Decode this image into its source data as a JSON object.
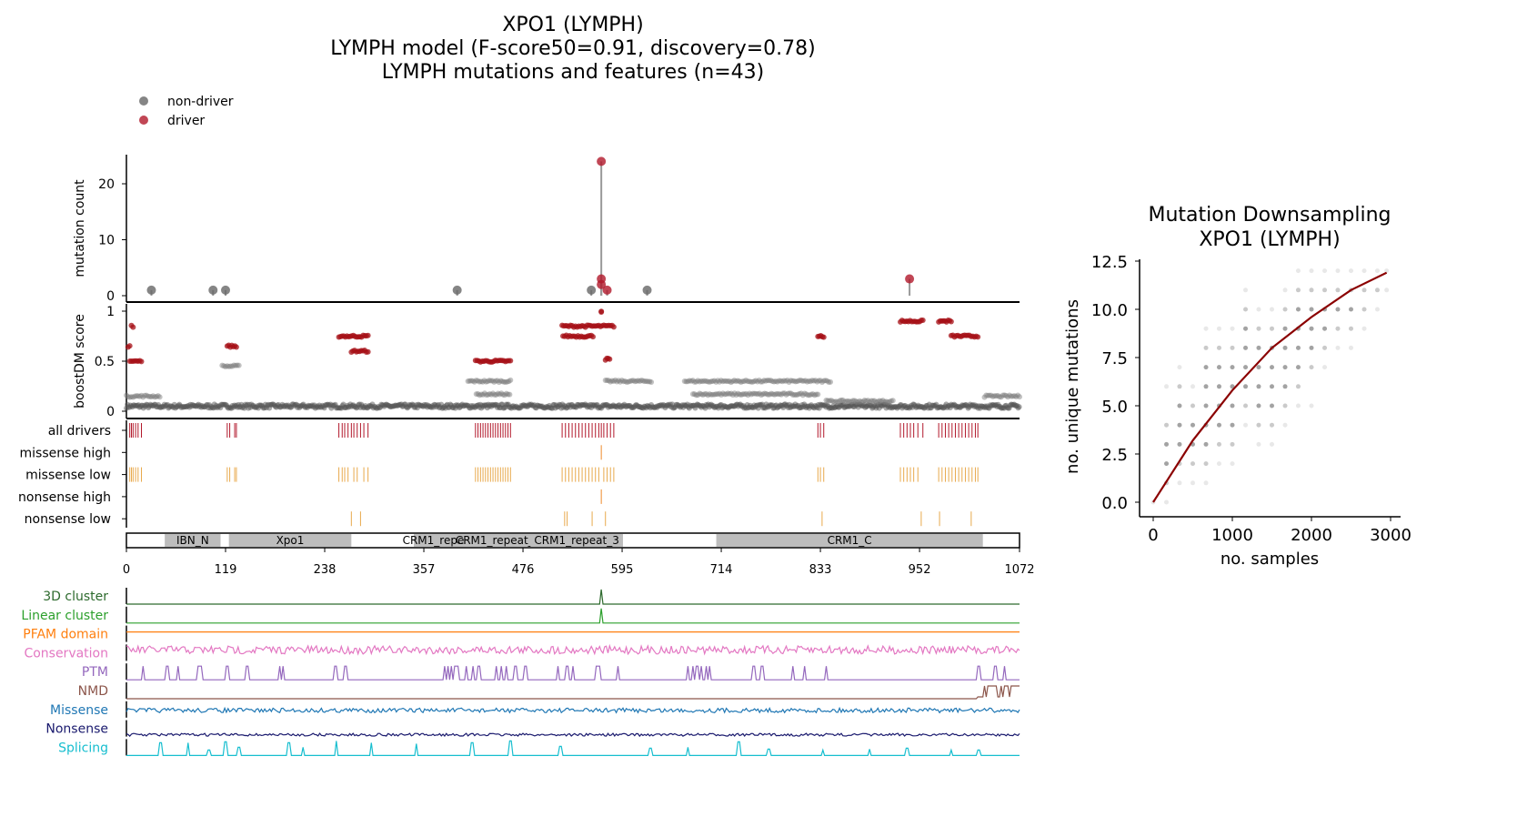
{
  "chart_data": [
    {
      "type": "lollipop",
      "title": [
        "XPO1 (LYMPH)",
        "LYMPH model (F-score50=0.91, discovery=0.78)",
        "LYMPH mutations and features (n=43)"
      ],
      "legend": {
        "placement": "top-left",
        "entries": [
          {
            "label": "non-driver",
            "color": "#666666"
          },
          {
            "label": "driver",
            "color": "#b2182b"
          }
        ]
      },
      "xlim": [
        0,
        1072
      ],
      "xticks": [
        0,
        119,
        238,
        357,
        476,
        595,
        714,
        833,
        952,
        1072
      ],
      "count_panel": {
        "ylabel": "mutation count",
        "ylim": [
          0,
          25
        ],
        "yticks": [
          0,
          10,
          20
        ],
        "needles": [
          {
            "pos": 30,
            "count": 1,
            "driver": false
          },
          {
            "pos": 104,
            "count": 1,
            "driver": false
          },
          {
            "pos": 119,
            "count": 1,
            "driver": false
          },
          {
            "pos": 397,
            "count": 1,
            "driver": false
          },
          {
            "pos": 558,
            "count": 1,
            "driver": false
          },
          {
            "pos": 570,
            "count": 24,
            "driver": true
          },
          {
            "pos": 570,
            "count": 3,
            "driver": true
          },
          {
            "pos": 570,
            "count": 2,
            "driver": true
          },
          {
            "pos": 577,
            "count": 1,
            "driver": true
          },
          {
            "pos": 625,
            "count": 1,
            "driver": false
          },
          {
            "pos": 940,
            "count": 3,
            "driver": true
          }
        ]
      },
      "boost_panel": {
        "ylabel": "boostDM score",
        "ylim": [
          0,
          1
        ],
        "yticks": [
          0,
          0.5,
          1
        ],
        "clusters": [
          {
            "from": 4,
            "to": 18,
            "score": 0.5,
            "driver": true
          },
          {
            "from": 6,
            "to": 8,
            "score": 0.85,
            "driver": true
          },
          {
            "from": 2,
            "to": 4,
            "score": 0.65,
            "driver": true
          },
          {
            "from": 0,
            "to": 40,
            "score": 0.15,
            "driver": false
          },
          {
            "from": 121,
            "to": 132,
            "score": 0.65,
            "driver": true
          },
          {
            "from": 115,
            "to": 135,
            "score": 0.45,
            "driver": false
          },
          {
            "from": 255,
            "to": 290,
            "score": 0.75,
            "driver": true
          },
          {
            "from": 270,
            "to": 290,
            "score": 0.6,
            "driver": true
          },
          {
            "from": 419,
            "to": 461,
            "score": 0.5,
            "driver": true
          },
          {
            "from": 410,
            "to": 461,
            "score": 0.3,
            "driver": false
          },
          {
            "from": 420,
            "to": 460,
            "score": 0.17,
            "driver": false
          },
          {
            "from": 523,
            "to": 585,
            "score": 0.85,
            "driver": true
          },
          {
            "from": 524,
            "to": 560,
            "score": 0.75,
            "driver": true
          },
          {
            "from": 570,
            "to": 570,
            "score": 1.0,
            "driver": true
          },
          {
            "from": 575,
            "to": 580,
            "score": 0.52,
            "driver": true
          },
          {
            "from": 575,
            "to": 630,
            "score": 0.3,
            "driver": false
          },
          {
            "from": 670,
            "to": 845,
            "score": 0.3,
            "driver": false
          },
          {
            "from": 680,
            "to": 830,
            "score": 0.17,
            "driver": false
          },
          {
            "from": 830,
            "to": 837,
            "score": 0.75,
            "driver": true
          },
          {
            "from": 840,
            "to": 920,
            "score": 0.1,
            "driver": false
          },
          {
            "from": 929,
            "to": 956,
            "score": 0.9,
            "driver": true
          },
          {
            "from": 975,
            "to": 990,
            "score": 0.9,
            "driver": true
          },
          {
            "from": 990,
            "to": 1022,
            "score": 0.75,
            "driver": true
          },
          {
            "from": 1030,
            "to": 1072,
            "score": 0.15,
            "driver": false
          }
        ]
      },
      "tracks": {
        "labels": [
          "all drivers",
          "missense high",
          "missense low",
          "nonsense high",
          "nonsense low"
        ],
        "colors": [
          "#b2182b",
          "#ef8a2c",
          "#e8a94c",
          "#ef8a2c",
          "#e8a94c"
        ],
        "all drivers": [
          4,
          6,
          8,
          11,
          14,
          18,
          121,
          124,
          130,
          132,
          255,
          259,
          262,
          266,
          270,
          273,
          277,
          281,
          285,
          290,
          419,
          422,
          425,
          428,
          431,
          434,
          437,
          440,
          443,
          446,
          449,
          452,
          455,
          458,
          461,
          523,
          527,
          531,
          535,
          539,
          543,
          547,
          551,
          555,
          559,
          563,
          567,
          570,
          573,
          577,
          581,
          585,
          830,
          833,
          837,
          929,
          933,
          937,
          941,
          945,
          950,
          956,
          975,
          979,
          983,
          987,
          991,
          995,
          999,
          1003,
          1007,
          1011,
          1015,
          1019,
          1022
        ],
        "missense high": [
          570
        ],
        "missense low": [
          4,
          6,
          8,
          11,
          14,
          18,
          121,
          124,
          130,
          132,
          255,
          259,
          262,
          266,
          273,
          277,
          285,
          290,
          419,
          422,
          425,
          428,
          431,
          434,
          437,
          440,
          443,
          446,
          449,
          452,
          455,
          458,
          461,
          523,
          527,
          531,
          535,
          539,
          543,
          547,
          551,
          555,
          559,
          563,
          567,
          573,
          577,
          581,
          585,
          830,
          833,
          837,
          929,
          933,
          937,
          941,
          945,
          950,
          975,
          979,
          983,
          987,
          991,
          995,
          999,
          1003,
          1007,
          1011,
          1015,
          1019,
          1022
        ],
        "nonsense high": [
          570
        ],
        "nonsense low": [
          270,
          281,
          526,
          529,
          559,
          575,
          835,
          954,
          976,
          1014
        ]
      },
      "domains": [
        {
          "name": "IBN_N",
          "from": 46,
          "to": 113
        },
        {
          "name": "Xpo1",
          "from": 123,
          "to": 270
        },
        {
          "name": "CRM1_repeat",
          "from": 345,
          "to": 405
        },
        {
          "name": "CRM1_repeat_2",
          "from": 405,
          "to": 487
        },
        {
          "name": "CRM1_repeat_3",
          "from": 485,
          "to": 596
        },
        {
          "name": "CRM1_C",
          "from": 708,
          "to": 1028
        }
      ],
      "features": [
        {
          "label": "3D cluster",
          "color": "#2d6a2d",
          "peaks": [
            570
          ]
        },
        {
          "label": "Linear cluster",
          "color": "#2ca02c",
          "peaks": [
            570
          ]
        },
        {
          "label": "PFAM domain",
          "color": "#ff7f0e"
        },
        {
          "label": "Conservation",
          "color": "#e377c2"
        },
        {
          "label": "PTM",
          "color": "#9467bd",
          "peaks": [
            20,
            49,
            62,
            86,
            89,
            120,
            122,
            145,
            184,
            188,
            251,
            263,
            382,
            386,
            390,
            394,
            397,
            408,
            416,
            423,
            444,
            450,
            456,
            467,
            479,
            518,
            529,
            536,
            564,
            567,
            590,
            674,
            680,
            685,
            690,
            696,
            700,
            753,
            763,
            800,
            814,
            840,
            1023,
            1043,
            1054
          ]
        },
        {
          "label": "NMD",
          "color": "#8c564b",
          "from": 1022
        },
        {
          "label": "Missense",
          "color": "#1f77b4"
        },
        {
          "label": "Nonsense",
          "color": "#1a1a6e"
        },
        {
          "label": "Splicing",
          "color": "#17becf",
          "peaks": [
            41,
            74,
            99,
            119,
            135,
            195,
            212,
            252,
            294,
            348,
            415,
            461,
            521,
            629,
            674,
            735,
            771,
            836,
            892,
            937,
            990,
            1023
          ]
        }
      ]
    },
    {
      "type": "scatter",
      "title": [
        "Mutation Downsampling",
        "XPO1 (LYMPH)"
      ],
      "xlabel": "no. samples",
      "ylabel": "no. unique mutations",
      "xlim": [
        -150,
        3100
      ],
      "ylim": [
        -0.6,
        12.7
      ],
      "xticks": [
        0,
        1000,
        2000,
        3000
      ],
      "yticks": [
        0.0,
        2.5,
        5.0,
        7.5,
        10.0,
        12.5
      ],
      "fit_color": "#8b0000",
      "fit": {
        "x": [
          0,
          500,
          1000,
          1500,
          2000,
          2500,
          2950
        ],
        "y": [
          0,
          3.2,
          5.8,
          8.0,
          9.6,
          11.0,
          11.9
        ]
      },
      "points": [
        {
          "x": 0,
          "y": [
            0
          ]
        },
        {
          "x": 167,
          "y": [
            0,
            1,
            2,
            3,
            4,
            6
          ]
        },
        {
          "x": 333,
          "y": [
            1,
            2,
            3,
            4,
            5,
            6,
            7
          ]
        },
        {
          "x": 500,
          "y": [
            1,
            2,
            3,
            4,
            5,
            6
          ]
        },
        {
          "x": 667,
          "y": [
            1,
            2,
            3,
            4,
            5,
            6,
            7,
            8,
            9
          ]
        },
        {
          "x": 833,
          "y": [
            2,
            3,
            4,
            5,
            6,
            7,
            8,
            9
          ]
        },
        {
          "x": 1000,
          "y": [
            2,
            3,
            4,
            5,
            6,
            7,
            8,
            9
          ]
        },
        {
          "x": 1167,
          "y": [
            4,
            5,
            6,
            7,
            8,
            9,
            10,
            11
          ]
        },
        {
          "x": 1333,
          "y": [
            3,
            4,
            5,
            6,
            7,
            8,
            9,
            10
          ]
        },
        {
          "x": 1500,
          "y": [
            3,
            4,
            5,
            6,
            7,
            8,
            9,
            10
          ]
        },
        {
          "x": 1667,
          "y": [
            4,
            5,
            6,
            7,
            8,
            9,
            10,
            11
          ]
        },
        {
          "x": 1833,
          "y": [
            5,
            6,
            7,
            8,
            9,
            10,
            11,
            12
          ]
        },
        {
          "x": 2000,
          "y": [
            5,
            7,
            8,
            9,
            10,
            11,
            12
          ]
        },
        {
          "x": 2167,
          "y": [
            7,
            8,
            9,
            10,
            11,
            12
          ]
        },
        {
          "x": 2333,
          "y": [
            8,
            9,
            10,
            11,
            12
          ]
        },
        {
          "x": 2500,
          "y": [
            8,
            9,
            10,
            11,
            12
          ]
        },
        {
          "x": 2667,
          "y": [
            9,
            10,
            11,
            12
          ]
        },
        {
          "x": 2833,
          "y": [
            10,
            11,
            12
          ]
        },
        {
          "x": 2950,
          "y": [
            11,
            12
          ]
        }
      ]
    }
  ]
}
